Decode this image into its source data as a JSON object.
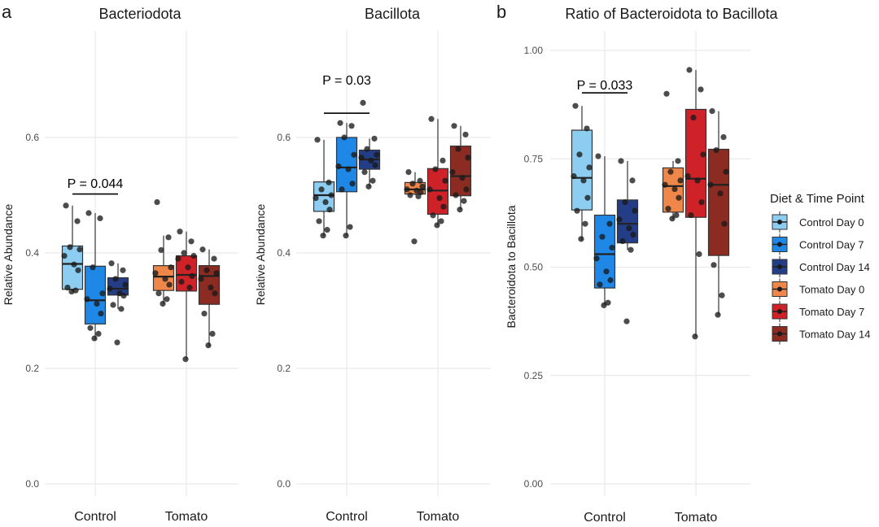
{
  "figure": {
    "panel_a_letter": "a",
    "panel_b_letter": "b"
  },
  "legend": {
    "title": "Diet & Time Point",
    "items": [
      {
        "label": "Control Day 0",
        "color": "#8ecdf2"
      },
      {
        "label": "Control Day 7",
        "color": "#1f87e6"
      },
      {
        "label": "Control Day 14",
        "color": "#233e86"
      },
      {
        "label": "Tomato Day 0",
        "color": "#f0874a"
      },
      {
        "label": "Tomato Day 7",
        "color": "#cf2228"
      },
      {
        "label": "Tomato Day 14",
        "color": "#8b2b22"
      }
    ]
  },
  "chart_data": [
    {
      "type": "box",
      "title": "Bacteriodota",
      "ylabel": "Relative Abundance",
      "ylim": [
        0,
        0.7
      ],
      "yticks": [
        "0.0",
        "0.2",
        "0.4",
        "0.6"
      ],
      "ytick_values": [
        0,
        0.2,
        0.4,
        0.6
      ],
      "categories": [
        "Control",
        "Tomato"
      ],
      "grid": true,
      "annotation": {
        "text": "P = 0.044",
        "from_group": 0,
        "to_group": 2,
        "y": 0.502
      },
      "groups": [
        {
          "category": "Control",
          "series": "Control Day 0",
          "color": "#8ecdf2",
          "min": 0.333,
          "q1": 0.337,
          "median": 0.381,
          "q3": 0.412,
          "max": 0.482,
          "points": [
            0.482,
            0.455,
            0.41,
            0.406,
            0.395,
            0.38,
            0.37,
            0.34,
            0.335,
            0.333
          ]
        },
        {
          "category": "Control",
          "series": "Control Day 7",
          "color": "#1f87e6",
          "min": 0.25,
          "q1": 0.277,
          "median": 0.318,
          "q3": 0.377,
          "max": 0.469,
          "points": [
            0.469,
            0.46,
            0.375,
            0.33,
            0.32,
            0.312,
            0.295,
            0.27,
            0.26,
            0.252
          ]
        },
        {
          "category": "Control",
          "series": "Control Day 14",
          "color": "#233e86",
          "min": 0.303,
          "q1": 0.327,
          "median": 0.338,
          "q3": 0.357,
          "max": 0.382,
          "points": [
            0.382,
            0.37,
            0.355,
            0.345,
            0.338,
            0.33,
            0.326,
            0.31,
            0.303,
            0.245
          ]
        },
        {
          "category": "Tomato",
          "series": "Tomato Day 0",
          "color": "#f0874a",
          "min": 0.312,
          "q1": 0.335,
          "median": 0.359,
          "q3": 0.378,
          "max": 0.43,
          "points": [
            0.488,
            0.427,
            0.405,
            0.375,
            0.365,
            0.355,
            0.345,
            0.33,
            0.32,
            0.312
          ]
        },
        {
          "category": "Tomato",
          "series": "Tomato Day 7",
          "color": "#cf2228",
          "min": 0.216,
          "q1": 0.334,
          "median": 0.362,
          "q3": 0.395,
          "max": 0.437,
          "points": [
            0.437,
            0.42,
            0.4,
            0.395,
            0.39,
            0.375,
            0.36,
            0.35,
            0.34,
            0.216
          ]
        },
        {
          "category": "Tomato",
          "series": "Tomato Day 14",
          "color": "#8b2b22",
          "min": 0.238,
          "q1": 0.311,
          "median": 0.36,
          "q3": 0.378,
          "max": 0.406,
          "points": [
            0.406,
            0.39,
            0.37,
            0.365,
            0.355,
            0.34,
            0.33,
            0.295,
            0.26,
            0.24
          ]
        }
      ]
    },
    {
      "type": "box",
      "title": "Bacillota",
      "ylabel": "Relative Abundance",
      "ylim": [
        0,
        0.7
      ],
      "yticks": [
        "0.0",
        "0.2",
        "0.4",
        "0.6"
      ],
      "ytick_values": [
        0,
        0.2,
        0.4,
        0.6
      ],
      "categories": [
        "Control",
        "Tomato"
      ],
      "grid": true,
      "annotation": {
        "text": "P = 0.03",
        "from_group": 0,
        "to_group": 2,
        "y": 0.642
      },
      "groups": [
        {
          "category": "Control",
          "series": "Control Day 0",
          "color": "#8ecdf2",
          "min": 0.43,
          "q1": 0.472,
          "median": 0.5,
          "q3": 0.523,
          "max": 0.596,
          "points": [
            0.596,
            0.522,
            0.51,
            0.5,
            0.495,
            0.488,
            0.475,
            0.455,
            0.44,
            0.43
          ]
        },
        {
          "category": "Control",
          "series": "Control Day 7",
          "color": "#1f87e6",
          "min": 0.43,
          "q1": 0.506,
          "median": 0.548,
          "q3": 0.6,
          "max": 0.625,
          "points": [
            0.625,
            0.62,
            0.6,
            0.57,
            0.55,
            0.545,
            0.52,
            0.51,
            0.445,
            0.43
          ]
        },
        {
          "category": "Control",
          "series": "Control Day 14",
          "color": "#233e86",
          "min": 0.515,
          "q1": 0.545,
          "median": 0.562,
          "q3": 0.578,
          "max": 0.598,
          "points": [
            0.66,
            0.598,
            0.58,
            0.57,
            0.565,
            0.56,
            0.552,
            0.54,
            0.525,
            0.515
          ]
        },
        {
          "category": "Tomato",
          "series": "Tomato Day 0",
          "color": "#f0874a",
          "min": 0.5,
          "q1": 0.502,
          "median": 0.51,
          "q3": 0.522,
          "max": 0.54,
          "points": [
            0.54,
            0.525,
            0.52,
            0.515,
            0.51,
            0.508,
            0.505,
            0.5,
            0.498,
            0.42
          ]
        },
        {
          "category": "Tomato",
          "series": "Tomato Day 7",
          "color": "#cf2228",
          "min": 0.448,
          "q1": 0.467,
          "median": 0.508,
          "q3": 0.546,
          "max": 0.632,
          "points": [
            0.632,
            0.56,
            0.545,
            0.525,
            0.51,
            0.495,
            0.48,
            0.465,
            0.455,
            0.448
          ]
        },
        {
          "category": "Tomato",
          "series": "Tomato Day 14",
          "color": "#8b2b22",
          "min": 0.475,
          "q1": 0.499,
          "median": 0.533,
          "q3": 0.585,
          "max": 0.62,
          "points": [
            0.62,
            0.605,
            0.58,
            0.565,
            0.54,
            0.53,
            0.51,
            0.5,
            0.49,
            0.475
          ]
        }
      ]
    },
    {
      "type": "box",
      "title": "Ratio of Bacteroidota to Bacillota",
      "ylabel": "Bacteroidota to Bacillota",
      "ylim": [
        0,
        1.03
      ],
      "yticks": [
        "0.00",
        "0.25",
        "0.50",
        "0.75",
        "1.00"
      ],
      "ytick_values": [
        0,
        0.25,
        0.5,
        0.75,
        1.0
      ],
      "categories": [
        "Control",
        "Tomato"
      ],
      "grid": true,
      "annotation": {
        "text": "P = 0.033",
        "from_group": 0,
        "to_group": 2,
        "y": 0.902
      },
      "groups": [
        {
          "category": "Control",
          "series": "Control Day 0",
          "color": "#8ecdf2",
          "min": 0.563,
          "q1": 0.632,
          "median": 0.706,
          "q3": 0.816,
          "max": 0.872,
          "points": [
            0.872,
            0.82,
            0.76,
            0.73,
            0.71,
            0.7,
            0.66,
            0.63,
            0.6,
            0.565
          ]
        },
        {
          "category": "Control",
          "series": "Control Day 7",
          "color": "#1f87e6",
          "min": 0.412,
          "q1": 0.452,
          "median": 0.53,
          "q3": 0.62,
          "max": 0.756,
          "points": [
            0.756,
            0.6,
            0.57,
            0.545,
            0.52,
            0.49,
            0.47,
            0.46,
            0.418,
            0.412
          ]
        },
        {
          "category": "Control",
          "series": "Control Day 14",
          "color": "#233e86",
          "min": 0.54,
          "q1": 0.556,
          "median": 0.6,
          "q3": 0.655,
          "max": 0.745,
          "points": [
            0.745,
            0.7,
            0.65,
            0.63,
            0.61,
            0.59,
            0.575,
            0.56,
            0.54,
            0.375
          ]
        },
        {
          "category": "Tomato",
          "series": "Tomato Day 0",
          "color": "#f0874a",
          "min": 0.61,
          "q1": 0.627,
          "median": 0.687,
          "q3": 0.729,
          "max": 0.745,
          "points": [
            0.9,
            0.745,
            0.72,
            0.7,
            0.69,
            0.68,
            0.66,
            0.635,
            0.62,
            0.612
          ]
        },
        {
          "category": "Tomato",
          "series": "Tomato Day 7",
          "color": "#cf2228",
          "min": 0.34,
          "q1": 0.615,
          "median": 0.704,
          "q3": 0.864,
          "max": 0.955,
          "points": [
            0.955,
            0.91,
            0.845,
            0.76,
            0.71,
            0.7,
            0.65,
            0.62,
            0.53,
            0.34
          ]
        },
        {
          "category": "Tomato",
          "series": "Tomato Day 14",
          "color": "#8b2b22",
          "min": 0.39,
          "q1": 0.527,
          "median": 0.69,
          "q3": 0.772,
          "max": 0.86,
          "points": [
            0.86,
            0.8,
            0.77,
            0.72,
            0.69,
            0.67,
            0.6,
            0.505,
            0.435,
            0.39
          ]
        }
      ]
    }
  ]
}
